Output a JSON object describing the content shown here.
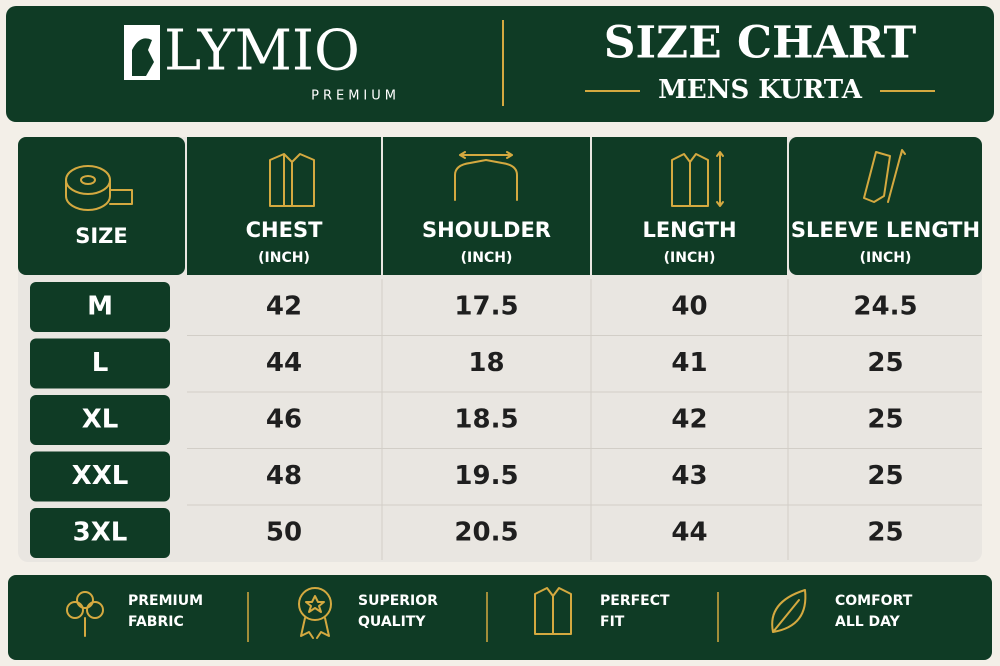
{
  "header": {
    "brand": "LYMIO",
    "tagline": "PREMIUM",
    "title": "SIZE CHART",
    "subtitle": "MENS KURTA"
  },
  "table": {
    "columns": [
      {
        "label": "SIZE"
      },
      {
        "label": "CHEST",
        "unit": "(INCH)"
      },
      {
        "label": "SHOULDER",
        "unit": "(INCH)"
      },
      {
        "label": "LENGTH",
        "unit": "(INCH)"
      },
      {
        "label": "SLEEVE LENGTH",
        "unit": "(INCH)"
      }
    ],
    "rows": [
      [
        "M",
        42,
        17.5,
        40,
        24.5
      ],
      [
        "L",
        44,
        18,
        41,
        25
      ],
      [
        "XL",
        46,
        18.5,
        42,
        25
      ],
      [
        "XXL",
        48,
        19.5,
        43,
        25
      ],
      [
        "3XL",
        50,
        20.5,
        44,
        25
      ]
    ]
  },
  "footer": {
    "features": [
      {
        "line1": "PREMIUM",
        "line2": "FABRIC"
      },
      {
        "line1": "SUPERIOR",
        "line2": "QUALITY"
      },
      {
        "line1": "PERFECT",
        "line2": "FIT"
      },
      {
        "line1": "COMFORT",
        "line2": "ALL DAY"
      }
    ]
  }
}
